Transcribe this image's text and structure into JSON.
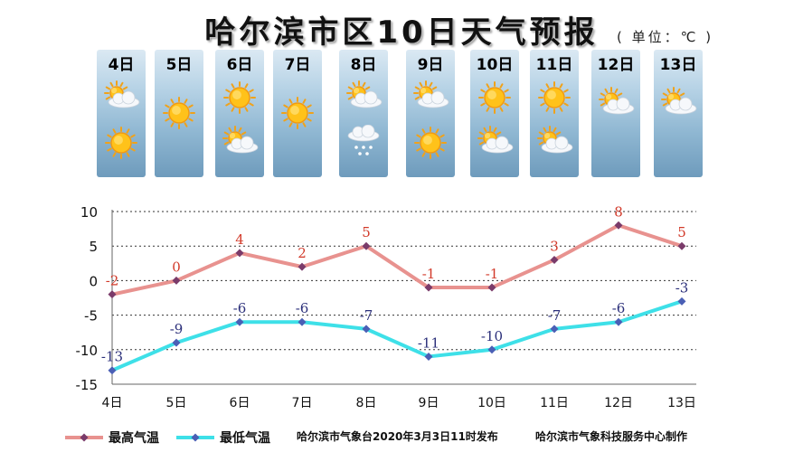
{
  "title": "哈尔滨市区10日天气预报",
  "unit": "( 单位：℃ )",
  "days": [
    {
      "label": "4日",
      "icons": [
        "partly-cloudy-icon",
        "sun-icon"
      ]
    },
    {
      "label": "5日",
      "icons": [
        "sun-icon"
      ]
    },
    {
      "label": "6日",
      "icons": [
        "sun-icon",
        "partly-cloudy-icon"
      ]
    },
    {
      "label": "7日",
      "icons": [
        "sun-icon"
      ]
    },
    {
      "label": "8日",
      "icons": [
        "partly-cloudy-icon",
        "light-snow-icon"
      ]
    },
    {
      "label": "9日",
      "icons": [
        "partly-cloudy-icon",
        "sun-icon"
      ]
    },
    {
      "label": "10日",
      "icons": [
        "sun-icon",
        "partly-cloudy-icon"
      ]
    },
    {
      "label": "11日",
      "icons": [
        "sun-icon",
        "partly-cloudy-icon"
      ]
    },
    {
      "label": "12日",
      "icons": [
        "partly-cloudy-icon"
      ]
    },
    {
      "label": "13日",
      "icons": [
        "partly-cloudy-icon"
      ]
    }
  ],
  "chart_data": {
    "type": "line",
    "x": [
      "4日",
      "5日",
      "6日",
      "7日",
      "8日",
      "9日",
      "10日",
      "11日",
      "12日",
      "13日"
    ],
    "series": [
      {
        "name": "最高气温",
        "values": [
          -2,
          0,
          4,
          2,
          5,
          -1,
          -1,
          3,
          8,
          5
        ],
        "color": "#e8928f",
        "marker_color": "#7a3b6a",
        "label_color": "#d23a2a"
      },
      {
        "name": "最低气温",
        "values": [
          -13,
          -9,
          -6,
          -6,
          -7,
          -11,
          -10,
          -7,
          -6,
          -3
        ],
        "color": "#3ee0e8",
        "marker_color": "#4a5fb5",
        "label_color": "#2b2f7a"
      }
    ],
    "ylim": [
      -15,
      10
    ],
    "yticks": [
      10,
      5,
      0,
      -5,
      -10,
      -15
    ],
    "grid": "dotted horizontal",
    "legend": "bottom-left"
  },
  "footer": {
    "publisher": "哈尔滨市气象台2020年3月3日11时发布",
    "producer": "哈尔滨市气象科技服务中心制作"
  }
}
